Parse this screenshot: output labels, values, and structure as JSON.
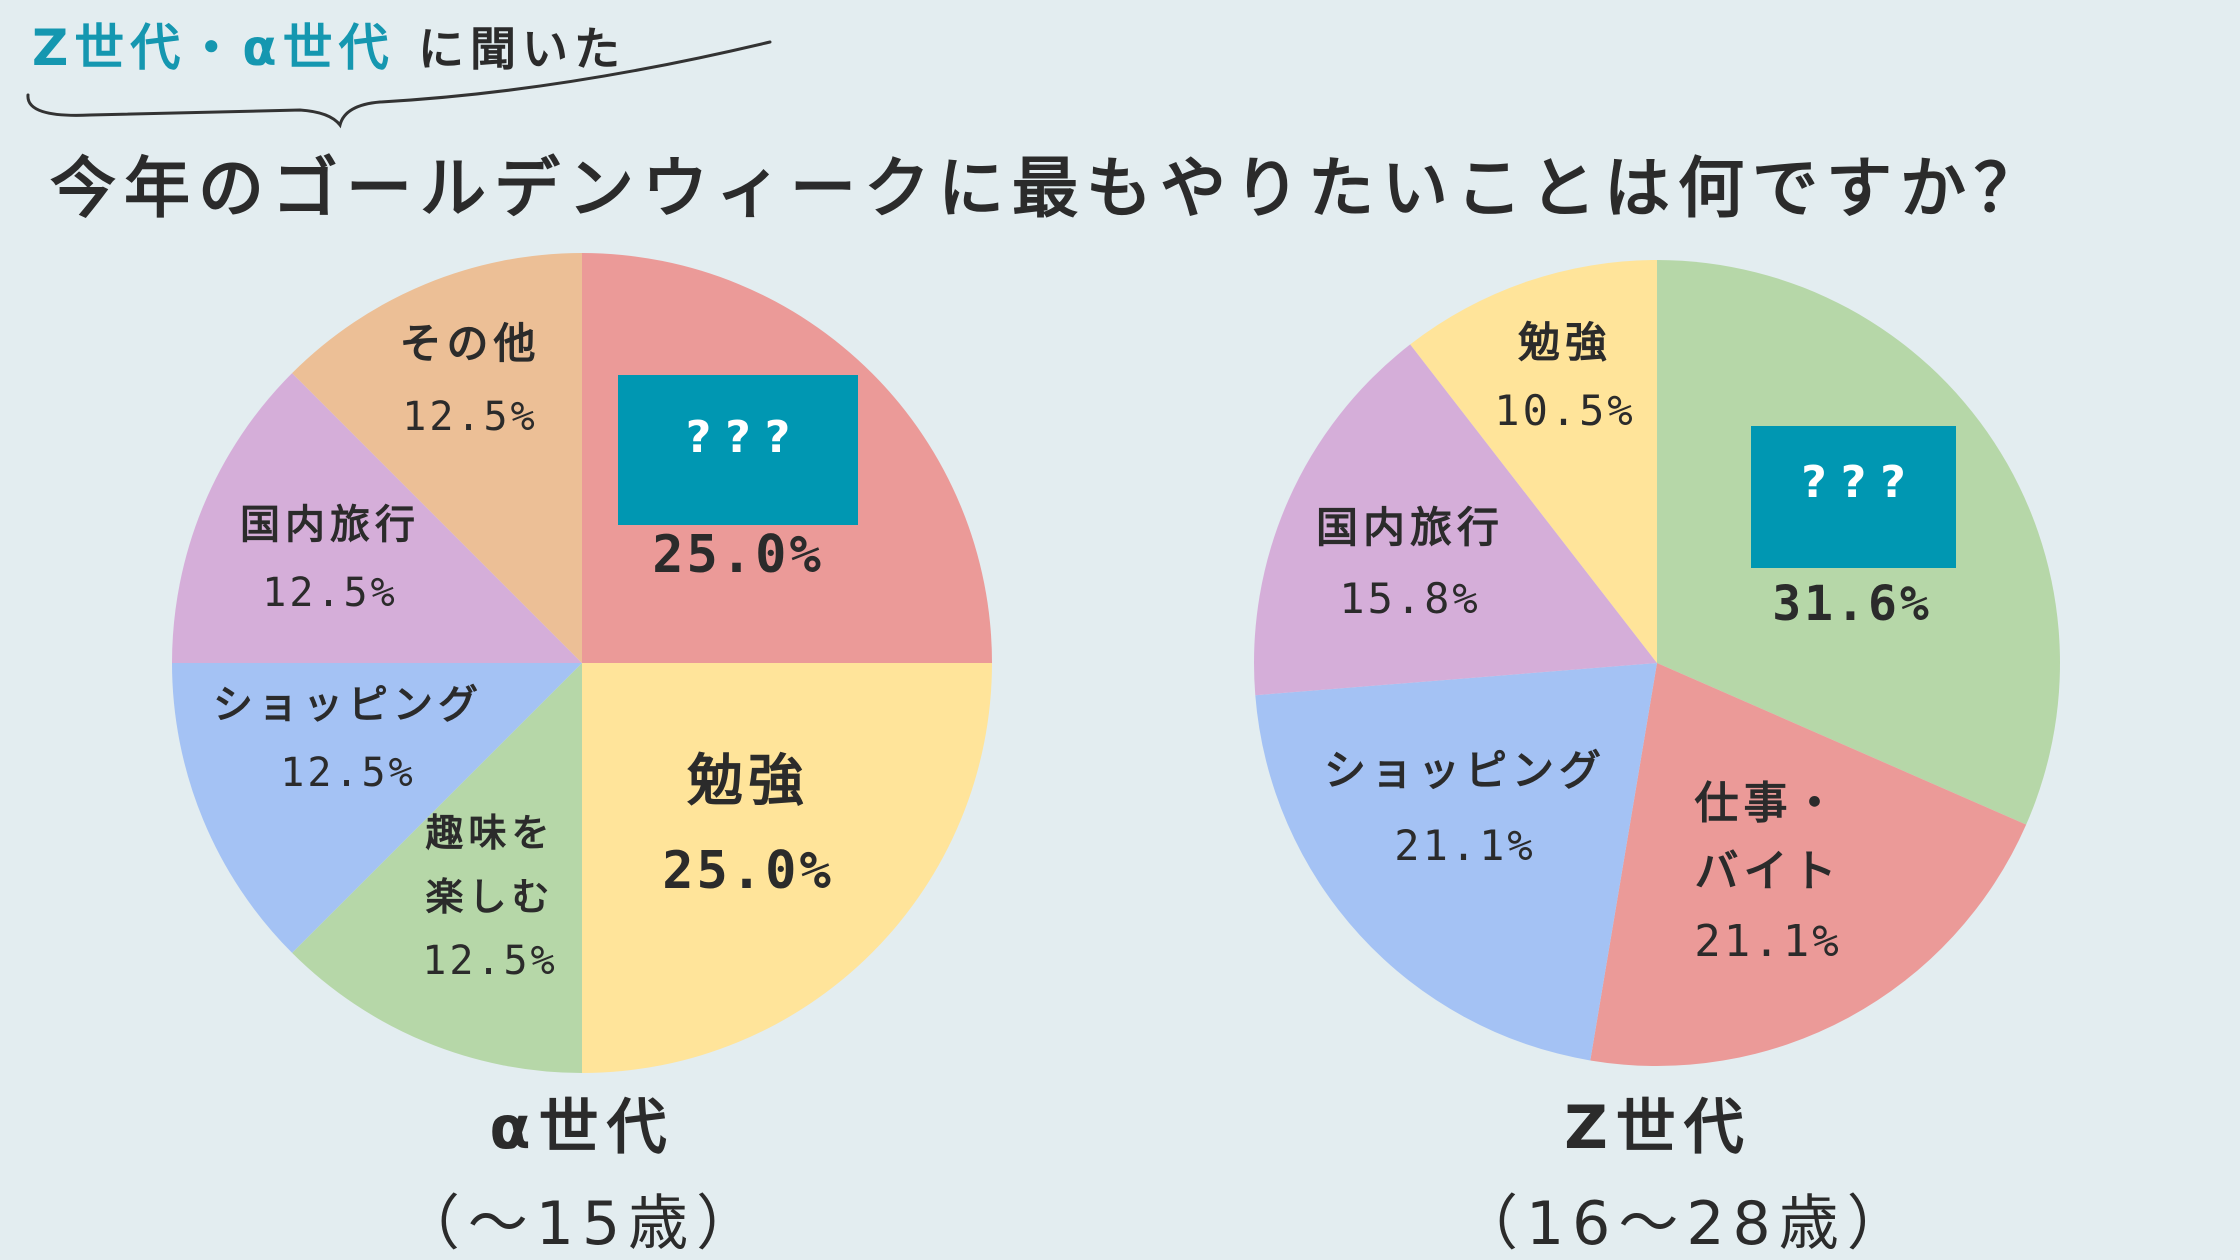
{
  "header": {
    "eyebrow_highlight": "Z世代・α世代",
    "eyebrow_rest": "に聞いた",
    "title": "今年のゴールデンウィークに最もやりたいことは何ですか？"
  },
  "colors": {
    "background": "#e3edf0",
    "accent": "#1597b0",
    "mystery_box": "#0097b2",
    "red": "#eb9a98",
    "yellow": "#ffe49a",
    "green": "#b6d7a8",
    "blue": "#a4c2f4",
    "purple": "#d5aed9",
    "orange": "#ecbf96"
  },
  "chart_data": [
    {
      "type": "pie",
      "caption": "α世代",
      "caption_sub": "（〜15歳）",
      "slices": [
        {
          "label": "???",
          "value": 25.0,
          "value_label": "25.0%",
          "color": "#eb9a98",
          "masked": true
        },
        {
          "label": "勉強",
          "value": 25.0,
          "value_label": "25.0%",
          "color": "#ffe49a"
        },
        {
          "label": "趣味を楽しむ",
          "label_lines": [
            "趣味を",
            "楽しむ"
          ],
          "value": 12.5,
          "value_label": "12.5%",
          "color": "#b6d7a8"
        },
        {
          "label": "ショッピング",
          "value": 12.5,
          "value_label": "12.5%",
          "color": "#a4c2f4"
        },
        {
          "label": "国内旅行",
          "value": 12.5,
          "value_label": "12.5%",
          "color": "#d5aed9"
        },
        {
          "label": "その他",
          "value": 12.5,
          "value_label": "12.5%",
          "color": "#ecbf96"
        }
      ]
    },
    {
      "type": "pie",
      "caption": "Z世代",
      "caption_sub": "（16〜28歳）",
      "slices": [
        {
          "label": "???",
          "value": 31.6,
          "value_label": "31.6%",
          "color": "#b6d7a8",
          "masked": true
        },
        {
          "label": "仕事・バイト",
          "label_lines": [
            "仕事・",
            "バイト"
          ],
          "value": 21.1,
          "value_label": "21.1%",
          "color": "#eb9a98"
        },
        {
          "label": "ショッピング",
          "value": 21.1,
          "value_label": "21.1%",
          "color": "#a4c2f4"
        },
        {
          "label": "国内旅行",
          "value": 15.8,
          "value_label": "15.8%",
          "color": "#d5aed9"
        },
        {
          "label": "勉強",
          "value": 10.5,
          "value_label": "10.5%",
          "color": "#ffe49a"
        }
      ]
    }
  ]
}
